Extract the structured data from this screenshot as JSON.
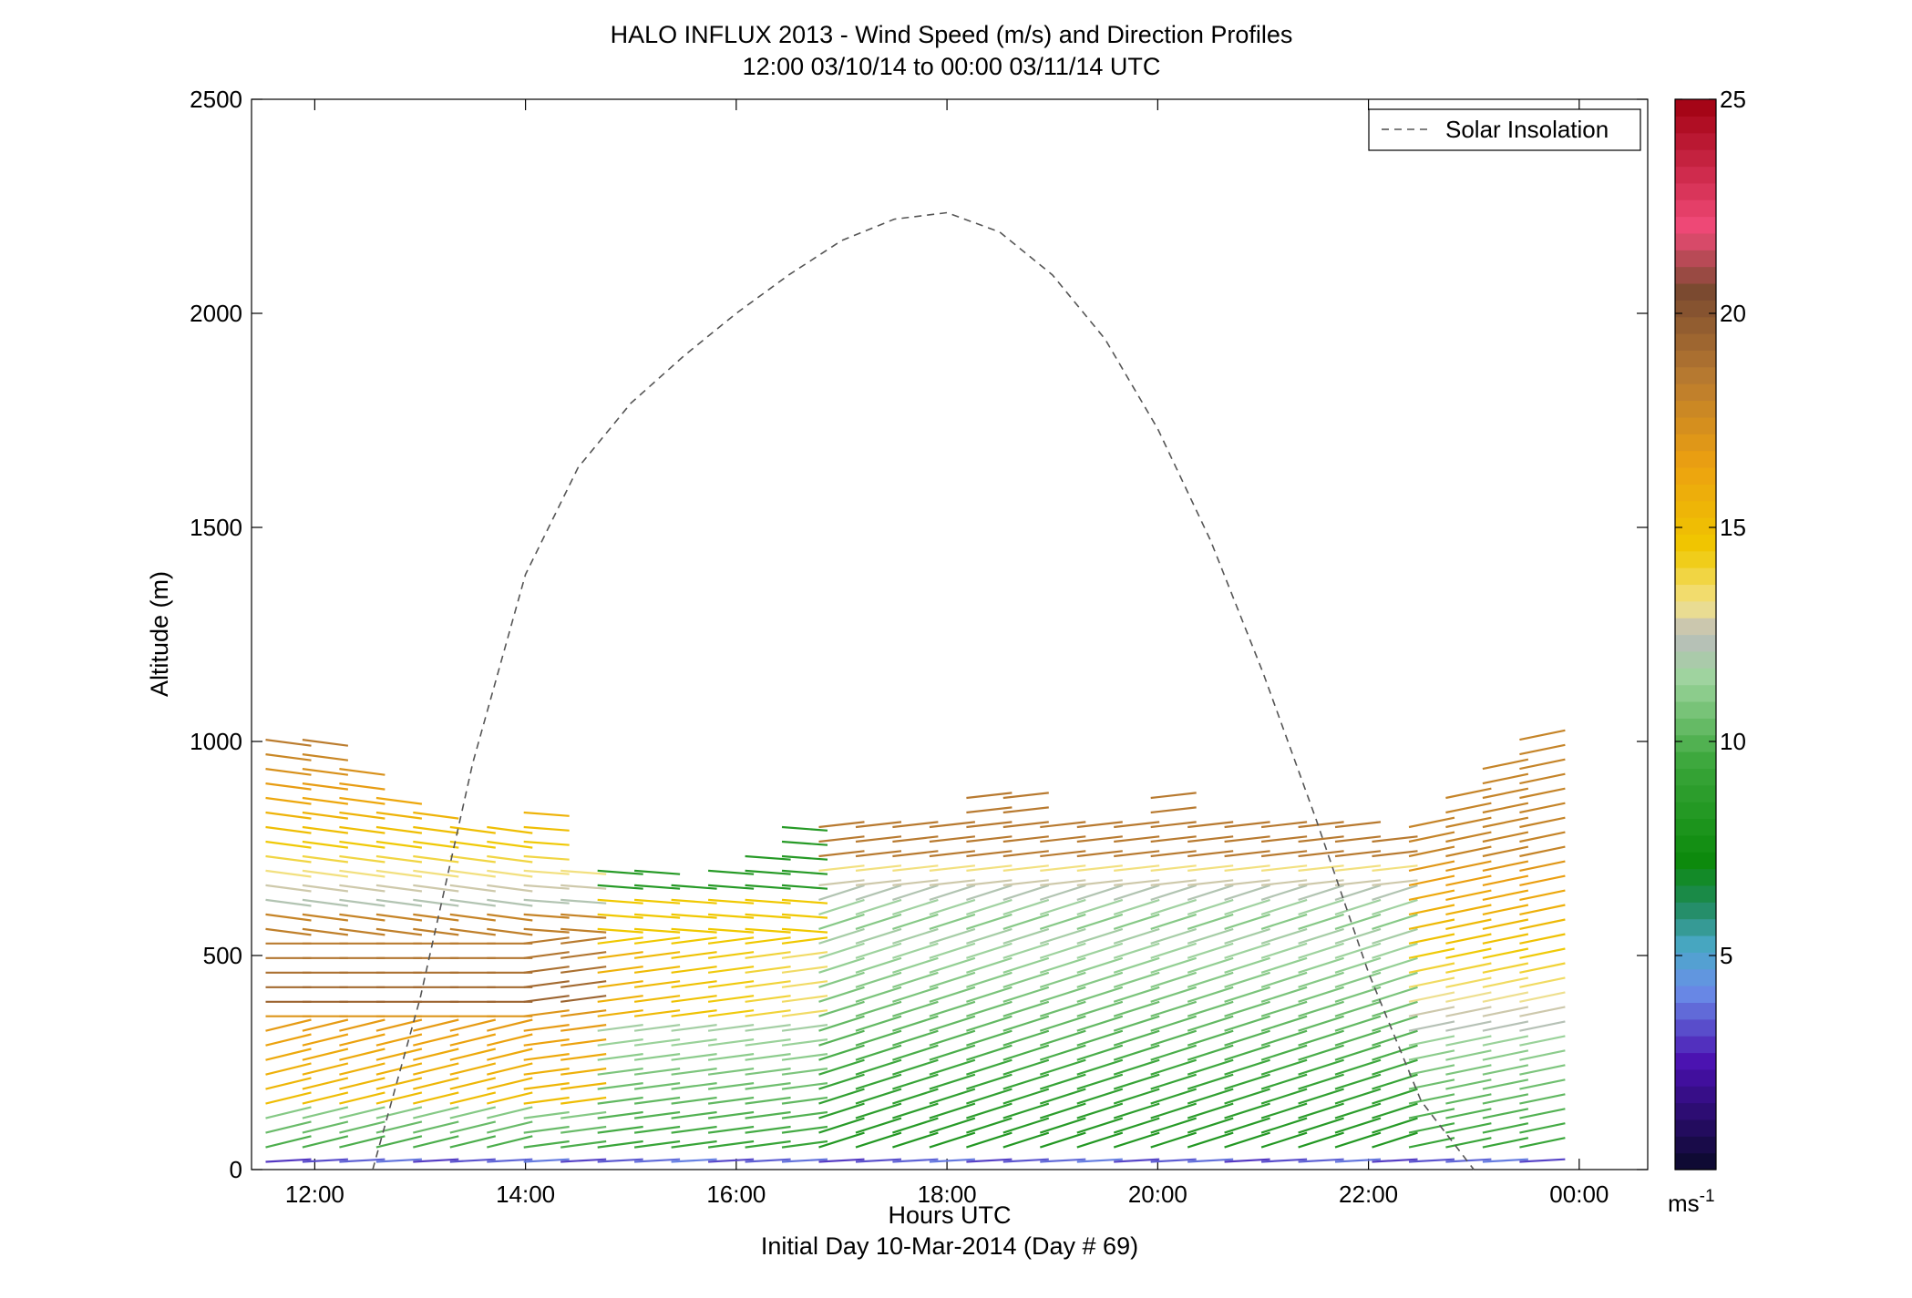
{
  "chart_data": {
    "type": "wind-barb-profile",
    "title_line1": "HALO INFLUX 2013 - Wind Speed (m/s) and Direction Profiles",
    "title_line2": "12:00 03/10/14 to 00:00 03/11/14  UTC",
    "xlabel": "Hours UTC",
    "xlabel_sub": "Initial Day 10-Mar-2014 (Day # 69)",
    "ylabel": "Altitude (m)",
    "x_range_hours": [
      11.4,
      24.65
    ],
    "ylim": [
      0,
      2500
    ],
    "x_ticks": [
      {
        "hour": 12,
        "label": "12:00"
      },
      {
        "hour": 14,
        "label": "14:00"
      },
      {
        "hour": 16,
        "label": "16:00"
      },
      {
        "hour": 18,
        "label": "18:00"
      },
      {
        "hour": 20,
        "label": "20:00"
      },
      {
        "hour": 22,
        "label": "22:00"
      },
      {
        "hour": 24,
        "label": "00:00"
      }
    ],
    "y_ticks": [
      {
        "value": 0,
        "label": "0"
      },
      {
        "value": 500,
        "label": "500"
      },
      {
        "value": 1000,
        "label": "1000"
      },
      {
        "value": 1500,
        "label": "1500"
      },
      {
        "value": 2000,
        "label": "2000"
      },
      {
        "value": 2500,
        "label": "2500"
      }
    ],
    "legend": {
      "label": "Solar Insolation",
      "position": "top-right",
      "line_color": "#555555",
      "line_style": "dashed"
    },
    "colorbar": {
      "range": [
        0,
        25
      ],
      "ticks": [
        {
          "value": 5,
          "label": "5"
        },
        {
          "value": 10,
          "label": "10"
        },
        {
          "value": 15,
          "label": "15"
        },
        {
          "value": 20,
          "label": "20"
        },
        {
          "value": 25,
          "label": "25"
        }
      ],
      "unit_base": "ms",
      "unit_exp": "-1",
      "stops": [
        {
          "v": 0,
          "c": "#0a0a2a"
        },
        {
          "v": 2.5,
          "c": "#4a10b0"
        },
        {
          "v": 4.2,
          "c": "#6a8ee8"
        },
        {
          "v": 5.2,
          "c": "#4aa8c8"
        },
        {
          "v": 6.2,
          "c": "#1f8a5a"
        },
        {
          "v": 7.2,
          "c": "#0c8a0c"
        },
        {
          "v": 9.5,
          "c": "#3aa63a"
        },
        {
          "v": 11.5,
          "c": "#9ed49e"
        },
        {
          "v": 12.5,
          "c": "#bcbcbc"
        },
        {
          "v": 13.2,
          "c": "#f2e28a"
        },
        {
          "v": 14.5,
          "c": "#f0c800"
        },
        {
          "v": 16.5,
          "c": "#eca010"
        },
        {
          "v": 18.5,
          "c": "#b87a30"
        },
        {
          "v": 20.5,
          "c": "#7a4a30"
        },
        {
          "v": 22,
          "c": "#f04a78"
        },
        {
          "v": 25,
          "c": "#a00010"
        }
      ]
    },
    "solar_insolation": {
      "description": "dashed curve, altitude-axis units",
      "points": [
        [
          12.55,
          0
        ],
        [
          13.0,
          400
        ],
        [
          13.5,
          950
        ],
        [
          14.0,
          1390
        ],
        [
          14.5,
          1640
        ],
        [
          15.0,
          1790
        ],
        [
          15.5,
          1900
        ],
        [
          16.0,
          2000
        ],
        [
          16.5,
          2090
        ],
        [
          17.0,
          2170
        ],
        [
          17.5,
          2220
        ],
        [
          18.0,
          2235
        ],
        [
          18.5,
          2190
        ],
        [
          19.0,
          2090
        ],
        [
          19.5,
          1940
        ],
        [
          20.0,
          1730
        ],
        [
          20.5,
          1470
        ],
        [
          21.0,
          1160
        ],
        [
          21.5,
          820
        ],
        [
          22.0,
          460
        ],
        [
          22.5,
          160
        ],
        [
          23.0,
          0
        ]
      ]
    },
    "wind_profiles": {
      "description": "wind vectors per profile time; speed in m/s, direction as arrow rise in m per plotted segment",
      "times": [
        11.75,
        12.1,
        12.45,
        12.8,
        13.15,
        13.5,
        13.85,
        14.2,
        14.55,
        14.9,
        15.25,
        15.6,
        15.95,
        16.3,
        16.65,
        17.0,
        17.35,
        17.7,
        18.05,
        18.4,
        18.75,
        19.1,
        19.45,
        19.8,
        20.15,
        20.5,
        20.85,
        21.2,
        21.55,
        21.9,
        22.25,
        22.6,
        22.95,
        23.3,
        23.65
      ],
      "altitude_step_m": 34,
      "ranges_max_m": [
        1030,
        1010,
        950,
        890,
        850,
        820,
        810,
        840,
        730,
        700,
        700,
        690,
        700,
        760,
        800,
        800,
        800,
        800,
        800,
        900,
        870,
        830,
        830,
        830,
        870,
        830,
        800,
        800,
        800,
        800,
        780,
        800,
        870,
        960,
        1010
      ]
    }
  }
}
